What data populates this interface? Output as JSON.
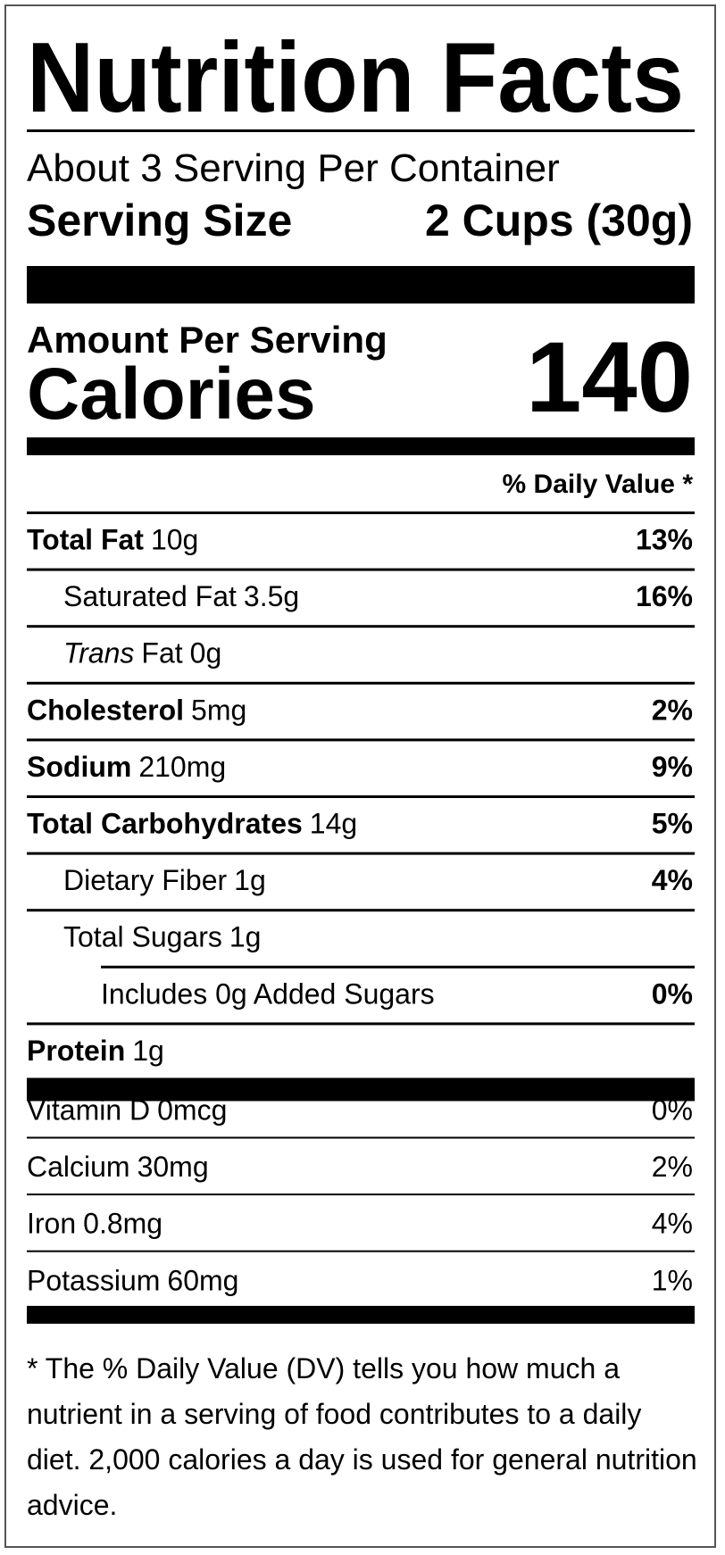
{
  "label": {
    "title": "Nutrition Facts",
    "servings": "About 3 Serving Per Container",
    "serving_size_label": "Serving Size",
    "serving_size_value": "2 Cups (30g)",
    "amount_per_serving": "Amount Per Serving",
    "calories_label": "Calories",
    "calories_value": 140,
    "daily_value_header": "% Daily Value *",
    "nutrients": [
      {
        "name": "Total Fat",
        "amount": "10g",
        "dv": "13%",
        "bold": true,
        "indent": 0
      },
      {
        "name": "Saturated Fat",
        "amount": "3.5g",
        "dv": "16%",
        "bold": false,
        "indent": 1
      },
      {
        "name_italic": "Trans",
        "name": "Fat",
        "amount": "0g",
        "bold": false,
        "indent": 1
      },
      {
        "name": "Cholesterol",
        "amount": "5mg",
        "dv": "2%",
        "bold": true,
        "indent": 0
      },
      {
        "name": "Sodium",
        "amount": "210mg",
        "dv": "9%",
        "bold": true,
        "indent": 0
      },
      {
        "name": "Total Carbohydrates",
        "amount": "14g",
        "dv": "5%",
        "bold": true,
        "indent": 0
      },
      {
        "name": "Dietary Fiber",
        "amount": "1g",
        "dv": "4%",
        "bold": false,
        "indent": 1
      },
      {
        "name": "Total Sugars",
        "amount": "1g",
        "bold": false,
        "indent": 1
      },
      {
        "name": "Includes 0g Added Sugars",
        "dv": "0%",
        "bold": false,
        "indent": 2
      },
      {
        "name": "Protein",
        "amount": "1g",
        "bold": true,
        "indent": 0
      }
    ],
    "vitamins": [
      {
        "name": "Vitamin D",
        "amount": "0mcg",
        "dv": "0%"
      },
      {
        "name": "Calcium",
        "amount": "30mg",
        "dv": "2%"
      },
      {
        "name": "Iron",
        "amount": "0.8mg",
        "dv": "4%"
      },
      {
        "name": "Potassium",
        "amount": "60mg",
        "dv": "1%"
      }
    ],
    "footnote": "* The % Daily Value (DV) tells you how much a nutrient in a serving of food contributes to a daily diet. 2,000 calories a day is used for general nutrition advice."
  }
}
